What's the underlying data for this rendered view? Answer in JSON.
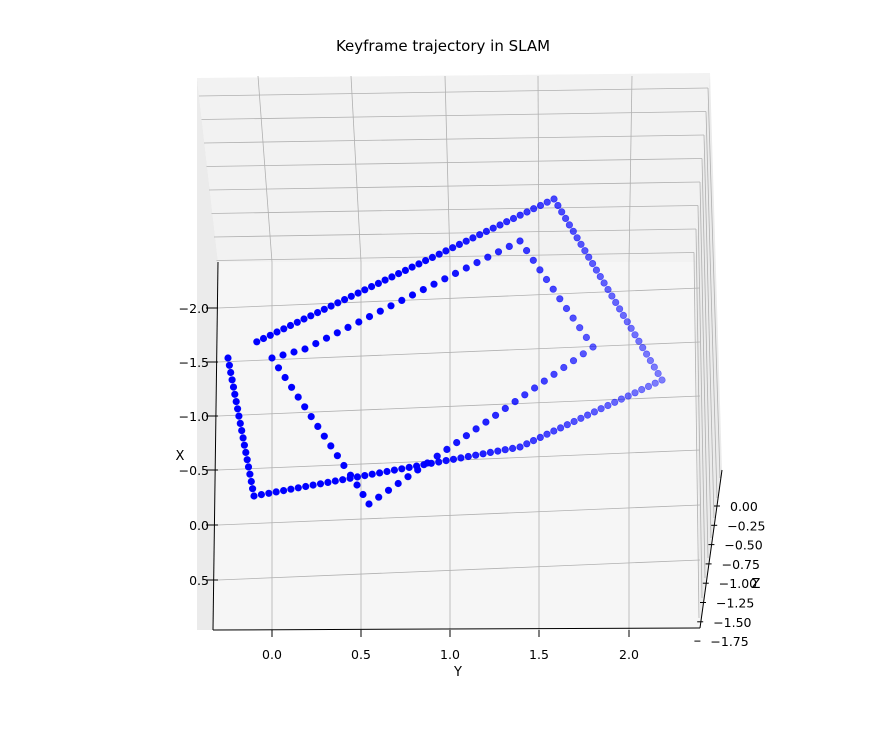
{
  "chart_data": {
    "type": "scatter",
    "projection": "3d",
    "title": "Keyframe trajectory in SLAM",
    "xlabel": "X",
    "ylabel": "Y",
    "zlabel": "Z",
    "x_ticks": [
      "−2.0",
      "−1.5",
      "−1.0",
      "−0.5",
      "0.0",
      "0.5"
    ],
    "y_ticks": [
      "0.0",
      "0.5",
      "1.0",
      "1.5",
      "2.0"
    ],
    "z_ticks": [
      "0.00",
      "−0.25",
      "−0.50",
      "−0.75",
      "−1.00",
      "−1.25",
      "−1.50",
      "−1.75"
    ],
    "xlim": [
      -2.3,
      0.9
    ],
    "ylim": [
      -0.35,
      2.4
    ],
    "zlim": [
      -1.75,
      0.0
    ],
    "grid": true,
    "marker_color": "#0000ff",
    "series": [
      {
        "name": "",
        "outer_loop_corners": [
          {
            "x": -1.58,
            "y": -0.2,
            "z": -0.05
          },
          {
            "x": -1.38,
            "y": 0.0,
            "z": -1.75
          },
          {
            "x": -1.5,
            "y": 1.6,
            "z": -1.7
          },
          {
            "x": -0.2,
            "y": 0.0,
            "z": -0.05
          }
        ],
        "inner_loop_corners": [
          {
            "x": -1.4,
            "y": 0.05,
            "z": -0.2
          },
          {
            "x": -1.3,
            "y": 1.3,
            "z": -1.55
          },
          {
            "x": -0.7,
            "y": 1.55,
            "z": -1.5
          },
          {
            "x": 0.0,
            "y": 0.55,
            "z": -0.3
          }
        ]
      }
    ]
  }
}
